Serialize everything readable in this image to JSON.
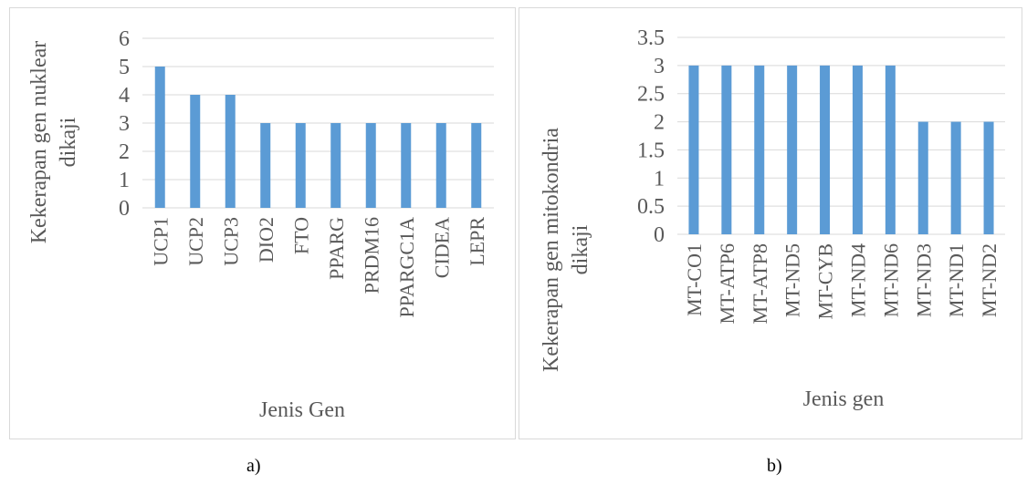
{
  "chart_data": [
    {
      "type": "bar",
      "title": "",
      "xlabel": "Jenis Gen",
      "ylabel_lines": [
        "Kekerapan gen nuklear",
        "dikaji"
      ],
      "categories": [
        "UCP1",
        "UCP2",
        "UCP3",
        "DIO2",
        "FTO",
        "PPARG",
        "PRDM16",
        "PPARGC1A",
        "CIDEA",
        "LEPR"
      ],
      "values": [
        5,
        4,
        4,
        3,
        3,
        3,
        3,
        3,
        3,
        3
      ],
      "ylim": [
        0,
        6
      ],
      "yticks": [
        "0",
        "1",
        "2",
        "3",
        "4",
        "5",
        "6"
      ],
      "grid": true,
      "bar_color": "#5b9bd5",
      "legend": "none"
    },
    {
      "type": "bar",
      "title": "",
      "xlabel": "Jenis gen",
      "ylabel_lines": [
        "Kekerapan gen mitokondria",
        "dikaji"
      ],
      "categories": [
        "MT-CO1",
        "MT-ATP6",
        "MT-ATP8",
        "MT-ND5",
        "MT-CYB",
        "MT-ND4",
        "MT-ND6",
        "MT-ND3",
        "MT-ND1",
        "MT-ND2"
      ],
      "values": [
        3,
        3,
        3,
        3,
        3,
        3,
        3,
        2,
        2,
        2
      ],
      "ylim": [
        0,
        3.5
      ],
      "yticks": [
        "0",
        "0.5",
        "1",
        "1.5",
        "2",
        "2.5",
        "3",
        "3.5"
      ],
      "grid": true,
      "bar_color": "#5b9bd5",
      "legend": "none"
    }
  ],
  "captions": [
    "a)",
    "b)"
  ]
}
